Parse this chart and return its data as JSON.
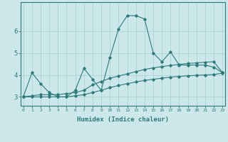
{
  "xlabel": "Humidex (Indice chaleur)",
  "bg_color": "#cce8ea",
  "line_color": "#2d7a7a",
  "grid_color": "#aad4d6",
  "x_ticks": [
    0,
    1,
    2,
    3,
    4,
    5,
    6,
    7,
    8,
    9,
    10,
    11,
    12,
    13,
    14,
    15,
    16,
    17,
    18,
    19,
    20,
    21,
    22,
    23
  ],
  "y_ticks": [
    3,
    4,
    5,
    6
  ],
  "ylim": [
    2.6,
    7.3
  ],
  "xlim": [
    -0.3,
    23.3
  ],
  "series_max": [
    3.0,
    4.1,
    3.6,
    3.2,
    3.0,
    3.0,
    3.3,
    4.3,
    3.8,
    3.3,
    4.8,
    6.1,
    6.7,
    6.7,
    6.55,
    5.0,
    4.6,
    5.05,
    4.45,
    4.45,
    4.45,
    4.45,
    4.35,
    4.1
  ],
  "series_mean": [
    3.0,
    3.05,
    3.1,
    3.1,
    3.1,
    3.15,
    3.2,
    3.3,
    3.55,
    3.7,
    3.85,
    3.95,
    4.05,
    4.15,
    4.25,
    4.32,
    4.38,
    4.43,
    4.48,
    4.52,
    4.55,
    4.58,
    4.6,
    4.1
  ],
  "series_min": [
    3.0,
    3.0,
    3.0,
    3.0,
    3.0,
    3.0,
    3.05,
    3.1,
    3.2,
    3.3,
    3.42,
    3.52,
    3.6,
    3.68,
    3.75,
    3.8,
    3.85,
    3.9,
    3.93,
    3.96,
    3.98,
    4.0,
    4.02,
    4.08
  ]
}
